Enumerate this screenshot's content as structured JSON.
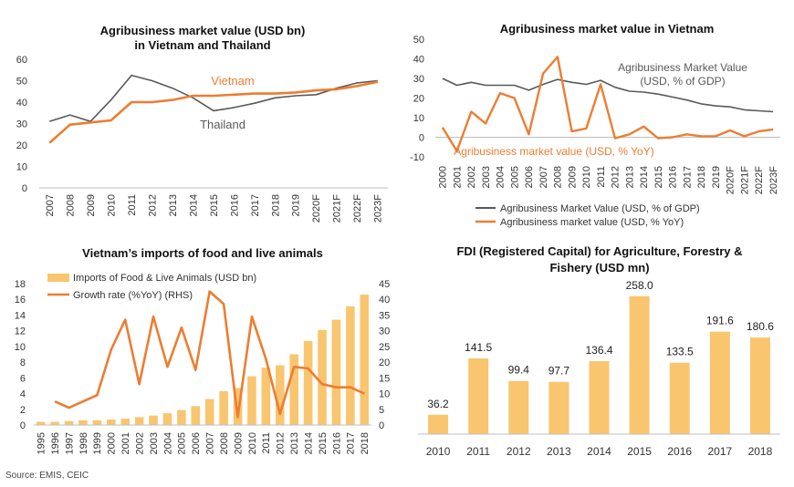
{
  "source": "Source: EMIS, CEIC",
  "chart_data": [
    {
      "type": "line",
      "title": "Agribusiness market value (USD bn)",
      "subtitle": "in Vietnam and Thailand",
      "categories": [
        "2007",
        "2008",
        "2009",
        "2010",
        "2011",
        "2012",
        "2013",
        "2014",
        "2015",
        "2016",
        "2017",
        "2018",
        "2019",
        "2020F",
        "2021F",
        "2022F",
        "2023F"
      ],
      "ylim": [
        0,
        60
      ],
      "yticks": [
        0,
        10,
        20,
        30,
        40,
        50,
        60
      ],
      "grid": false,
      "series": [
        {
          "name": "Vietnam",
          "color": "#ED7D31",
          "values": [
            21,
            29.5,
            30.5,
            31.5,
            40,
            40,
            41,
            43,
            43,
            43.5,
            44,
            44,
            44.5,
            45.5,
            46,
            47.5,
            49.5
          ]
        },
        {
          "name": "Thailand",
          "color": "#595959",
          "values": [
            31,
            34,
            31,
            41,
            52.5,
            50,
            46.5,
            42,
            36,
            37.5,
            39.5,
            42,
            43,
            43.5,
            46.5,
            49,
            50
          ]
        }
      ]
    },
    {
      "type": "line",
      "title": "Agribusiness market value in Vietnam",
      "categories": [
        "2000",
        "2001",
        "2002",
        "2003",
        "2004",
        "2005",
        "2006",
        "2007",
        "2008",
        "2009",
        "2010",
        "2011",
        "2012",
        "2013",
        "2014",
        "2015",
        "2016",
        "2017",
        "2018",
        "2019",
        "2020F",
        "2021F",
        "2022F",
        "2023F"
      ],
      "ylim": [
        -10,
        50
      ],
      "yticks": [
        -10,
        0,
        10,
        20,
        30,
        40,
        50
      ],
      "legend_position": "bottom",
      "series": [
        {
          "name": "Agribusiness Market Value (USD, % of GDP)",
          "label_lines": [
            "Agribusiness Market Value",
            "(USD, % of GDP)"
          ],
          "color": "#595959",
          "values": [
            30,
            26.5,
            28,
            26.5,
            26.5,
            26.5,
            24,
            27,
            29.5,
            28,
            27,
            29,
            25.5,
            23.5,
            23,
            22,
            20.5,
            19,
            17,
            16,
            15.5,
            14,
            13.5,
            13
          ]
        },
        {
          "name": "Agribusiness market value (USD, % YoY)",
          "label_lines": [
            "Agribusiness market value (USD, % YoY)"
          ],
          "color": "#ED7D31",
          "values": [
            5,
            -7,
            13,
            7,
            22.5,
            20,
            1.5,
            32.5,
            41,
            3,
            4.5,
            27,
            -0.5,
            1.5,
            5.5,
            -0.5,
            0,
            1.5,
            0.5,
            0.5,
            3.5,
            0.5,
            3,
            4
          ]
        }
      ]
    },
    {
      "type": "bar",
      "title": "Vietnam’s imports of food and live animals",
      "categories": [
        "1995",
        "1996",
        "1997",
        "1998",
        "1999",
        "2000",
        "2001",
        "2002",
        "2003",
        "2004",
        "2005",
        "2006",
        "2007",
        "2008",
        "2009",
        "2010",
        "2011",
        "2012",
        "2013",
        "2014",
        "2015",
        "2016",
        "2017",
        "2018"
      ],
      "ylim": [
        0,
        18
      ],
      "yticks": [
        0,
        2,
        4,
        6,
        8,
        10,
        12,
        14,
        16,
        18
      ],
      "y2lim": [
        0,
        45
      ],
      "y2ticks": [
        0,
        5,
        10,
        15,
        20,
        25,
        30,
        35,
        40,
        45
      ],
      "legend_position": "top-left",
      "series": [
        {
          "name": "Imports of Food & Live Animals (USD bn)",
          "type": "bar",
          "color": "#F9C56F",
          "values": [
            0.4,
            0.4,
            0.5,
            0.6,
            0.6,
            0.7,
            0.8,
            1.0,
            1.2,
            1.5,
            1.9,
            2.4,
            3.3,
            4.3,
            4.7,
            6.2,
            7.3,
            7.6,
            9.0,
            10.7,
            12.1,
            13.4,
            15.1,
            16.6
          ]
        },
        {
          "name": "Growth rate (%YoY) (RHS)",
          "type": "line",
          "axis": "right",
          "color": "#ED7D31",
          "values": [
            null,
            7.5,
            5.5,
            7.5,
            9.5,
            24,
            33.5,
            13,
            34.5,
            18.5,
            31,
            17.5,
            42.5,
            38.5,
            2.5,
            34.5,
            21,
            3.5,
            18.5,
            18,
            13,
            12,
            12,
            10
          ]
        }
      ]
    },
    {
      "type": "bar",
      "title": "FDI (Registered Capital) for Agriculture, Forestry &",
      "subtitle": "Fishery (USD mn)",
      "categories": [
        "2010",
        "2011",
        "2012",
        "2013",
        "2014",
        "2015",
        "2016",
        "2017",
        "2018"
      ],
      "values": [
        36.2,
        141.5,
        99.4,
        97.7,
        136.4,
        258.0,
        133.5,
        191.6,
        180.6
      ],
      "value_labels": [
        "36.2",
        "141.5",
        "99.4",
        "97.7",
        "136.4",
        "258.0",
        "133.5",
        "191.6",
        "180.6"
      ],
      "ylim": [
        0,
        290
      ],
      "color": "#F9C56F"
    }
  ]
}
